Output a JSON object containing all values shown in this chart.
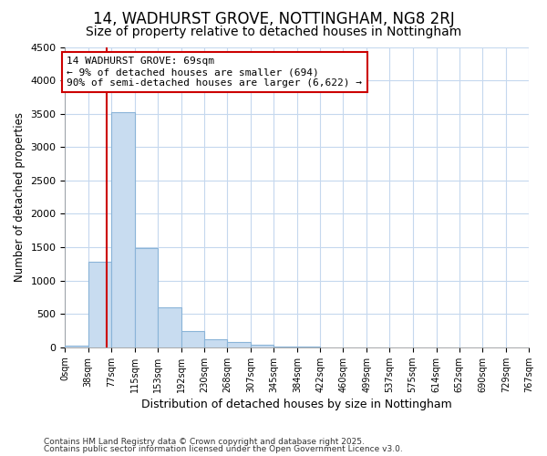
{
  "title1": "14, WADHURST GROVE, NOTTINGHAM, NG8 2RJ",
  "title2": "Size of property relative to detached houses in Nottingham",
  "xlabel": "Distribution of detached houses by size in Nottingham",
  "ylabel": "Number of detached properties",
  "bin_edges": [
    0,
    38,
    77,
    115,
    153,
    192,
    230,
    268,
    307,
    345,
    384,
    422,
    460,
    499,
    537,
    575,
    614,
    652,
    690,
    729,
    767
  ],
  "bar_heights": [
    30,
    1280,
    3520,
    1490,
    600,
    240,
    125,
    75,
    40,
    10,
    5,
    2,
    0,
    0,
    0,
    0,
    0,
    0,
    0,
    0
  ],
  "bar_color": "#c8dcf0",
  "bar_edgecolor": "#8ab4d8",
  "background_color": "#ffffff",
  "plot_bg_color": "#ffffff",
  "grid_color": "#c5d8ee",
  "property_size": 69,
  "vline_color": "#cc0000",
  "annotation_text": "14 WADHURST GROVE: 69sqm\n← 9% of detached houses are smaller (694)\n90% of semi-detached houses are larger (6,622) →",
  "annotation_box_color": "#ffffff",
  "annotation_border_color": "#cc0000",
  "ylim": [
    0,
    4500
  ],
  "yticks": [
    0,
    500,
    1000,
    1500,
    2000,
    2500,
    3000,
    3500,
    4000,
    4500
  ],
  "footnote1": "Contains HM Land Registry data © Crown copyright and database right 2025.",
  "footnote2": "Contains public sector information licensed under the Open Government Licence v3.0.",
  "title1_fontsize": 12,
  "title2_fontsize": 10,
  "tick_labels": [
    "0sqm",
    "38sqm",
    "77sqm",
    "115sqm",
    "153sqm",
    "192sqm",
    "230sqm",
    "268sqm",
    "307sqm",
    "345sqm",
    "384sqm",
    "422sqm",
    "460sqm",
    "499sqm",
    "537sqm",
    "575sqm",
    "614sqm",
    "652sqm",
    "690sqm",
    "729sqm",
    "767sqm"
  ]
}
